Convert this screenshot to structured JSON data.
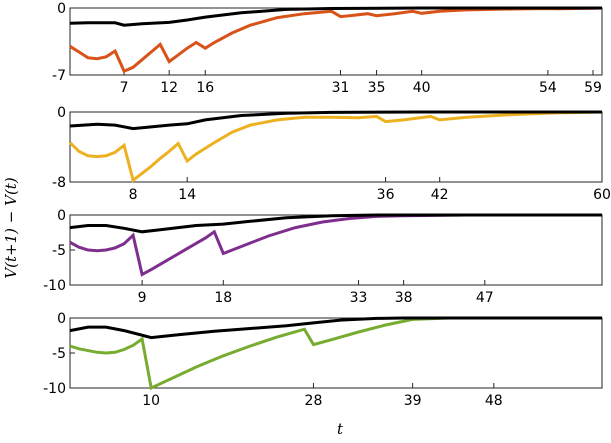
{
  "chart_data": [
    {
      "type": "line",
      "xlim": [
        1,
        60
      ],
      "ylim": [
        -7,
        0
      ],
      "yticks": [
        0,
        -7
      ],
      "ytick_labels": [
        "0",
        "-7"
      ],
      "xticks": [
        7,
        12,
        16,
        31,
        35,
        40,
        54,
        59
      ],
      "xtick_labels": [
        "7",
        "12",
        "16",
        "31",
        "35",
        "40",
        "54",
        "59"
      ],
      "series": [
        {
          "color": "#000000",
          "points": [
            [
              1,
              -1.6
            ],
            [
              3,
              -1.55
            ],
            [
              6,
              -1.55
            ],
            [
              7,
              -1.8
            ],
            [
              9,
              -1.65
            ],
            [
              12,
              -1.5
            ],
            [
              14,
              -1.25
            ],
            [
              16,
              -0.95
            ],
            [
              20,
              -0.5
            ],
            [
              25,
              -0.15
            ],
            [
              30,
              -0.05
            ],
            [
              40,
              0
            ],
            [
              60,
              0
            ]
          ]
        },
        {
          "color": "#d95319",
          "points": [
            [
              1,
              -4.0
            ],
            [
              2,
              -4.6
            ],
            [
              3,
              -5.2
            ],
            [
              4,
              -5.3
            ],
            [
              5,
              -5.1
            ],
            [
              6,
              -4.5
            ],
            [
              7,
              -6.6
            ],
            [
              8,
              -6.2
            ],
            [
              9,
              -5.4
            ],
            [
              10,
              -4.6
            ],
            [
              11,
              -3.8
            ],
            [
              12,
              -5.6
            ],
            [
              13,
              -4.9
            ],
            [
              14,
              -4.2
            ],
            [
              15,
              -3.6
            ],
            [
              16,
              -4.2
            ],
            [
              17,
              -3.6
            ],
            [
              19,
              -2.6
            ],
            [
              21,
              -1.8
            ],
            [
              24,
              -1.0
            ],
            [
              27,
              -0.6
            ],
            [
              30,
              -0.35
            ],
            [
              31,
              -0.9
            ],
            [
              32,
              -0.8
            ],
            [
              34,
              -0.6
            ],
            [
              35,
              -0.8
            ],
            [
              37,
              -0.6
            ],
            [
              39,
              -0.35
            ],
            [
              40,
              -0.55
            ],
            [
              42,
              -0.35
            ],
            [
              45,
              -0.2
            ],
            [
              50,
              -0.1
            ],
            [
              54,
              -0.05
            ],
            [
              55,
              -0.08
            ],
            [
              59,
              -0.02
            ],
            [
              60,
              0
            ]
          ]
        }
      ]
    },
    {
      "type": "line",
      "xlim": [
        1,
        60
      ],
      "ylim": [
        -8,
        0
      ],
      "yticks": [
        0,
        -8
      ],
      "ytick_labels": [
        "0",
        "-8"
      ],
      "xticks": [
        8,
        14,
        36,
        42,
        60
      ],
      "xtick_labels": [
        "8",
        "14",
        "36",
        "42",
        "60"
      ],
      "series": [
        {
          "color": "#000000",
          "points": [
            [
              1,
              -1.6
            ],
            [
              4,
              -1.4
            ],
            [
              6,
              -1.5
            ],
            [
              8,
              -1.9
            ],
            [
              10,
              -1.7
            ],
            [
              12,
              -1.5
            ],
            [
              14,
              -1.35
            ],
            [
              16,
              -0.9
            ],
            [
              20,
              -0.4
            ],
            [
              25,
              -0.15
            ],
            [
              30,
              -0.05
            ],
            [
              40,
              0
            ],
            [
              60,
              0
            ]
          ]
        },
        {
          "color": "#edb120",
          "points": [
            [
              1,
              -3.5
            ],
            [
              2,
              -4.5
            ],
            [
              3,
              -5.0
            ],
            [
              4,
              -5.1
            ],
            [
              5,
              -5.0
            ],
            [
              6,
              -4.6
            ],
            [
              7,
              -3.8
            ],
            [
              8,
              -7.8
            ],
            [
              9,
              -7.0
            ],
            [
              10,
              -6.2
            ],
            [
              11,
              -5.3
            ],
            [
              12,
              -4.5
            ],
            [
              13,
              -3.6
            ],
            [
              14,
              -5.6
            ],
            [
              15,
              -4.8
            ],
            [
              17,
              -3.5
            ],
            [
              19,
              -2.3
            ],
            [
              21,
              -1.5
            ],
            [
              24,
              -0.9
            ],
            [
              27,
              -0.6
            ],
            [
              30,
              -0.6
            ],
            [
              33,
              -0.65
            ],
            [
              35,
              -0.5
            ],
            [
              36,
              -1.1
            ],
            [
              38,
              -0.9
            ],
            [
              41,
              -0.5
            ],
            [
              42,
              -0.9
            ],
            [
              45,
              -0.6
            ],
            [
              50,
              -0.3
            ],
            [
              55,
              -0.1
            ],
            [
              60,
              0
            ]
          ]
        }
      ]
    },
    {
      "type": "line",
      "xlim": [
        1,
        60
      ],
      "ylim": [
        -10,
        0
      ],
      "yticks": [
        0,
        -5,
        -10
      ],
      "ytick_labels": [
        "0",
        "-5",
        "-10"
      ],
      "xticks": [
        9,
        18,
        33,
        38,
        47
      ],
      "xtick_labels": [
        "9",
        "18",
        "33",
        "38",
        "47"
      ],
      "series": [
        {
          "color": "#000000",
          "points": [
            [
              1,
              -1.8
            ],
            [
              3,
              -1.5
            ],
            [
              5,
              -1.5
            ],
            [
              7,
              -1.9
            ],
            [
              9,
              -2.4
            ],
            [
              11,
              -2.1
            ],
            [
              13,
              -1.8
            ],
            [
              15,
              -1.5
            ],
            [
              18,
              -1.3
            ],
            [
              21,
              -0.9
            ],
            [
              25,
              -0.4
            ],
            [
              30,
              -0.1
            ],
            [
              35,
              0
            ],
            [
              60,
              0
            ]
          ]
        },
        {
          "color": "#7e2f8e",
          "points": [
            [
              1,
              -3.9
            ],
            [
              2,
              -4.6
            ],
            [
              3,
              -5.0
            ],
            [
              4,
              -5.1
            ],
            [
              5,
              -5.0
            ],
            [
              6,
              -4.7
            ],
            [
              7,
              -4.1
            ],
            [
              8,
              -2.9
            ],
            [
              9,
              -8.5
            ],
            [
              10,
              -7.8
            ],
            [
              12,
              -6.3
            ],
            [
              14,
              -4.8
            ],
            [
              16,
              -3.3
            ],
            [
              17,
              -2.4
            ],
            [
              18,
              -5.5
            ],
            [
              19,
              -5.0
            ],
            [
              21,
              -4.0
            ],
            [
              23,
              -3.0
            ],
            [
              26,
              -1.8
            ],
            [
              29,
              -1.0
            ],
            [
              32,
              -0.5
            ],
            [
              35,
              -0.2
            ],
            [
              38,
              -0.1
            ],
            [
              45,
              0
            ],
            [
              60,
              0
            ]
          ]
        }
      ]
    },
    {
      "type": "line",
      "xlim": [
        1,
        60
      ],
      "ylim": [
        -10,
        0
      ],
      "yticks": [
        0,
        -5,
        -10
      ],
      "ytick_labels": [
        "0",
        "-5",
        "-10"
      ],
      "xticks": [
        10,
        28,
        39,
        48
      ],
      "xtick_labels": [
        "10",
        "28",
        "39",
        "48"
      ],
      "series": [
        {
          "color": "#000000",
          "points": [
            [
              1,
              -1.8
            ],
            [
              3,
              -1.3
            ],
            [
              5,
              -1.3
            ],
            [
              7,
              -1.8
            ],
            [
              10,
              -2.8
            ],
            [
              13,
              -2.4
            ],
            [
              17,
              -1.9
            ],
            [
              21,
              -1.5
            ],
            [
              25,
              -1.1
            ],
            [
              28,
              -0.7
            ],
            [
              31,
              -0.3
            ],
            [
              35,
              -0.05
            ],
            [
              38,
              0
            ],
            [
              60,
              0
            ]
          ]
        },
        {
          "color": "#77ac30",
          "points": [
            [
              1,
              -4.0
            ],
            [
              2,
              -4.4
            ],
            [
              4,
              -4.9
            ],
            [
              5,
              -5.0
            ],
            [
              6,
              -4.9
            ],
            [
              7,
              -4.5
            ],
            [
              8,
              -3.9
            ],
            [
              9,
              -3.0
            ],
            [
              10,
              -10.0
            ],
            [
              12,
              -8.8
            ],
            [
              15,
              -7.0
            ],
            [
              18,
              -5.4
            ],
            [
              21,
              -4.0
            ],
            [
              24,
              -2.7
            ],
            [
              27,
              -1.6
            ],
            [
              28,
              -3.8
            ],
            [
              30,
              -3.1
            ],
            [
              33,
              -2.0
            ],
            [
              36,
              -1.0
            ],
            [
              39,
              -0.2
            ],
            [
              43,
              0
            ],
            [
              60,
              0
            ]
          ]
        }
      ]
    }
  ],
  "y_axis_label": "V(t+1) − V(t)",
  "x_axis_label": "t"
}
